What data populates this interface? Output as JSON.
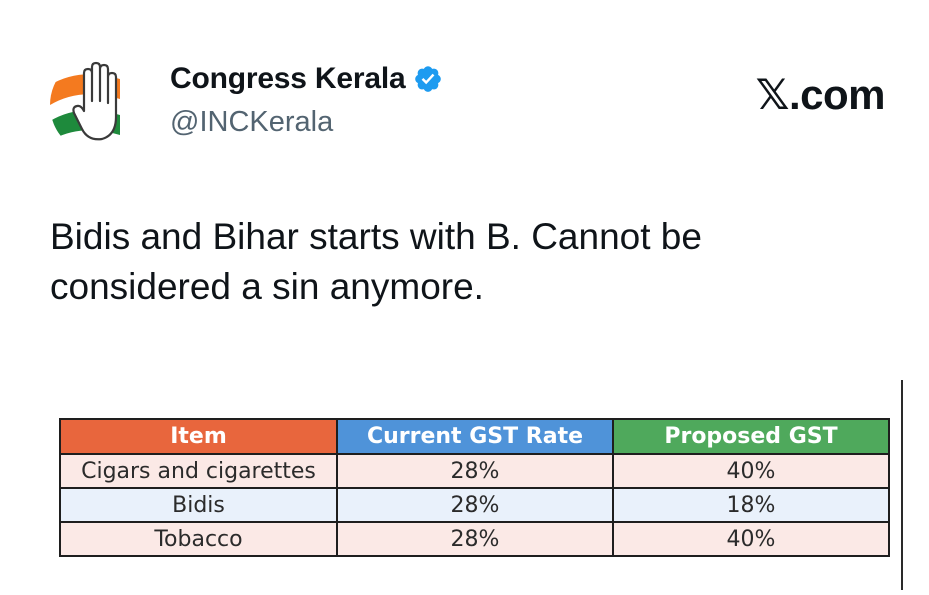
{
  "post": {
    "display_name": "Congress Kerala",
    "handle": "@INCKerala",
    "site_brand": "𝕏.com",
    "text_lines": [
      "Bidis and Bihar starts with B. Cannot be",
      "considered a sin anymore."
    ],
    "avatar_icon": "congress-hand-logo-icon",
    "verified_icon": "verified-badge-icon",
    "colors": {
      "verified": "#1d9bf0",
      "saffron": "#f47a1f",
      "green": "#1e8a3c"
    }
  },
  "table": {
    "headers": [
      "Item",
      "Current GST Rate",
      "Proposed GST"
    ],
    "header_colors": [
      "#e8663d",
      "#4f93d9",
      "#4fa95c"
    ],
    "rows": [
      [
        "Cigars and cigarettes",
        "28%",
        "40%"
      ],
      [
        "Bidis",
        "28%",
        "18%"
      ],
      [
        "Tobacco",
        "28%",
        "40%"
      ]
    ]
  }
}
